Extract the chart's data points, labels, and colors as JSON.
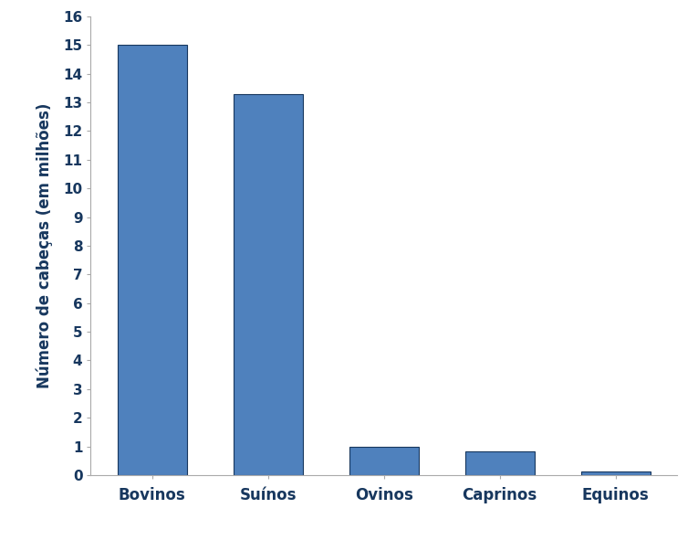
{
  "categories": [
    "Bovinos",
    "Suínos",
    "Ovinos",
    "Caprinos",
    "Equinos"
  ],
  "values": [
    15.0,
    13.3,
    1.0,
    0.83,
    0.13
  ],
  "bar_color": "#4F81BD",
  "bar_edgecolor": "#17375E",
  "ylabel": "Número de cabeças (em milhões)",
  "ylim": [
    0,
    16
  ],
  "yticks": [
    0,
    1,
    2,
    3,
    4,
    5,
    6,
    7,
    8,
    9,
    10,
    11,
    12,
    13,
    14,
    15,
    16
  ],
  "background_color": "#ffffff",
  "ylabel_fontsize": 12,
  "tick_fontsize": 11,
  "xlabel_fontsize": 12,
  "bar_width": 0.6,
  "spine_color": "#AAAAAA",
  "tick_color": "#444444",
  "label_color": "#17375E"
}
